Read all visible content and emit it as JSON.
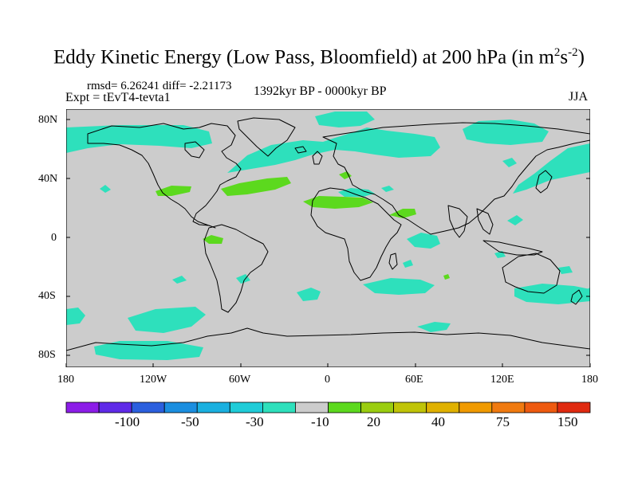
{
  "title": {
    "prefix": "Eddy Kinetic Energy (Low Pass, Bloomfield) at 200 hPa (in m",
    "exp1": "2",
    "mid": "s",
    "exp2": "-2",
    "suffix": ")"
  },
  "stats_line": "rmsd= 6.26241 diff= -2.21173",
  "experiment": "Expt = tEvT4-tevta1",
  "period": "1392kyr BP - 0000kyr BP",
  "season": "JJA",
  "axes": {
    "lat_labels": [
      "80N",
      "40N",
      "0",
      "40S",
      "80S"
    ],
    "lon_labels": [
      "180",
      "120W",
      "60W",
      "0",
      "60E",
      "120E",
      "180"
    ]
  },
  "colorbar": {
    "colors": [
      "#8c1de8",
      "#5f2ae8",
      "#2b5fde",
      "#1b8ee0",
      "#1ab0e0",
      "#1fccd8",
      "#2ee0bc",
      "#cccccc",
      "#5cd91e",
      "#9acd10",
      "#c0c408",
      "#e0b100",
      "#f09a00",
      "#f07a10",
      "#ee5a10",
      "#e02a10"
    ],
    "labels": [
      "-100",
      "-50",
      "-30",
      "-10",
      "20",
      "40",
      "75",
      "150"
    ]
  },
  "map": {
    "ocean_color": "#cccccc",
    "positive_fill": "#5cd91e",
    "negative_fill": "#2ee0bc"
  }
}
